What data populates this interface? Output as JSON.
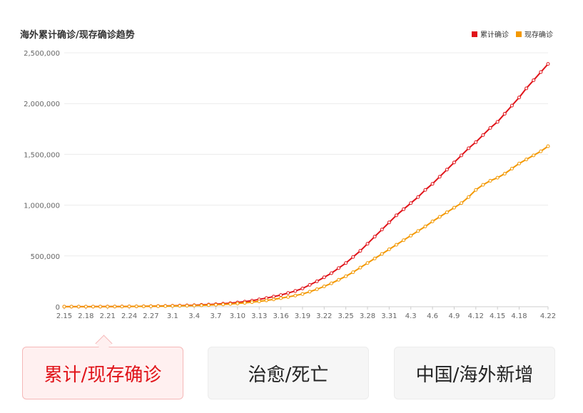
{
  "title": "海外累计确诊/现存确诊趋势",
  "legend": [
    {
      "label": "累计确诊",
      "color": "#e0141a"
    },
    {
      "label": "现存确诊",
      "color": "#f39800"
    }
  ],
  "tabs": [
    {
      "label": "累计/现存确诊",
      "active": true
    },
    {
      "label": "治愈/死亡",
      "active": false
    },
    {
      "label": "中国/海外新增",
      "active": false
    }
  ],
  "chart_data": {
    "type": "line",
    "title": "海外累计确诊/现存确诊趋势",
    "grid": true,
    "legend_position": "top-right",
    "ylim": [
      0,
      2500000
    ],
    "y_ticks": [
      "0",
      "500,000",
      "1,000,000",
      "1,500,000",
      "2,000,000",
      "2,500,000"
    ],
    "y_tick_values": [
      0,
      500000,
      1000000,
      1500000,
      2000000,
      2500000
    ],
    "x_ticks": [
      "2.15",
      "2.18",
      "2.21",
      "2.24",
      "2.27",
      "3.1",
      "3.4",
      "3.7",
      "3.10",
      "3.13",
      "3.16",
      "3.19",
      "3.22",
      "3.25",
      "3.28",
      "3.31",
      "4.3",
      "4.6",
      "4.9",
      "4.12",
      "4.15",
      "4.18",
      "4.22"
    ],
    "x": [
      "2.15",
      "2.16",
      "2.17",
      "2.18",
      "2.19",
      "2.20",
      "2.21",
      "2.22",
      "2.23",
      "2.24",
      "2.25",
      "2.26",
      "2.27",
      "2.28",
      "2.29",
      "3.1",
      "3.2",
      "3.3",
      "3.4",
      "3.5",
      "3.6",
      "3.7",
      "3.8",
      "3.9",
      "3.10",
      "3.11",
      "3.12",
      "3.13",
      "3.14",
      "3.15",
      "3.16",
      "3.17",
      "3.18",
      "3.19",
      "3.20",
      "3.21",
      "3.22",
      "3.23",
      "3.24",
      "3.25",
      "3.26",
      "3.27",
      "3.28",
      "3.29",
      "3.30",
      "3.31",
      "4.1",
      "4.2",
      "4.3",
      "4.4",
      "4.5",
      "4.6",
      "4.7",
      "4.8",
      "4.9",
      "4.10",
      "4.11",
      "4.12",
      "4.13",
      "4.14",
      "4.15",
      "4.16",
      "4.17",
      "4.18",
      "4.19",
      "4.20",
      "4.21",
      "4.22"
    ],
    "series": [
      {
        "name": "累计确诊",
        "color": "#e0141a",
        "values": [
          600,
          700,
          800,
          1000,
          1100,
          1200,
          1500,
          1800,
          2400,
          3000,
          3800,
          4500,
          5500,
          6500,
          8000,
          9500,
          11000,
          13000,
          15000,
          18000,
          21000,
          25000,
          30000,
          35000,
          42000,
          50000,
          60000,
          72000,
          85000,
          100000,
          115000,
          135000,
          155000,
          180000,
          215000,
          250000,
          290000,
          330000,
          380000,
          430000,
          490000,
          550000,
          620000,
          690000,
          760000,
          830000,
          900000,
          960000,
          1020000,
          1080000,
          1150000,
          1210000,
          1280000,
          1350000,
          1420000,
          1490000,
          1560000,
          1620000,
          1690000,
          1760000,
          1820000,
          1900000,
          1980000,
          2060000,
          2150000,
          2230000,
          2310000,
          2390000
        ]
      },
      {
        "name": "现存确诊",
        "color": "#f39800",
        "values": [
          500,
          600,
          700,
          800,
          900,
          1000,
          1200,
          1500,
          2000,
          2600,
          3200,
          3800,
          4600,
          5400,
          6500,
          7600,
          8800,
          10000,
          11500,
          13500,
          16000,
          19000,
          23000,
          27000,
          32000,
          38000,
          45000,
          53000,
          62000,
          72000,
          84000,
          96000,
          110000,
          125000,
          148000,
          172000,
          200000,
          230000,
          265000,
          300000,
          340000,
          385000,
          430000,
          475000,
          520000,
          565000,
          610000,
          655000,
          700000,
          745000,
          790000,
          840000,
          885000,
          930000,
          975000,
          1020000,
          1080000,
          1150000,
          1200000,
          1240000,
          1270000,
          1310000,
          1360000,
          1410000,
          1450000,
          1490000,
          1530000,
          1580000
        ]
      }
    ]
  }
}
